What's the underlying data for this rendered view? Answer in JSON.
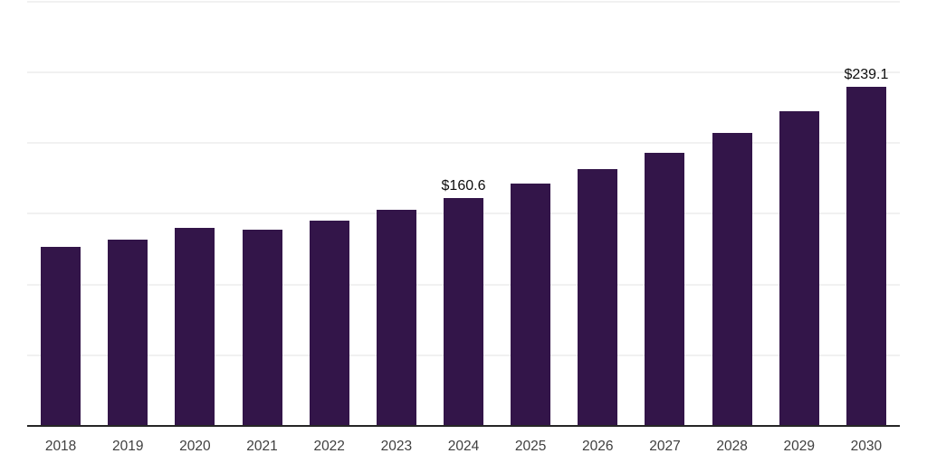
{
  "chart_data": {
    "type": "bar",
    "title": "",
    "xlabel": "",
    "ylabel": "",
    "categories": [
      "2018",
      "2019",
      "2020",
      "2021",
      "2022",
      "2023",
      "2024",
      "2025",
      "2026",
      "2027",
      "2028",
      "2029",
      "2030"
    ],
    "values": [
      125.9,
      131.3,
      139.4,
      138.2,
      144.5,
      152.2,
      160.6,
      170.9,
      180.6,
      192.1,
      206.3,
      221.7,
      239.1
    ],
    "data_labels": {
      "2024": "$160.6",
      "2030": "$239.1"
    },
    "ylim": [
      0,
      300
    ],
    "gridline_interval": 50,
    "grid": "horizontal-only, y-axis labels hidden",
    "legend": "none",
    "colors": {
      "bar": "#331549",
      "gridline": "#f1f1f1",
      "axis_line": "#262626",
      "tick_label": "#404040",
      "data_label": "#0d0d0d",
      "background": "#ffffff"
    }
  }
}
